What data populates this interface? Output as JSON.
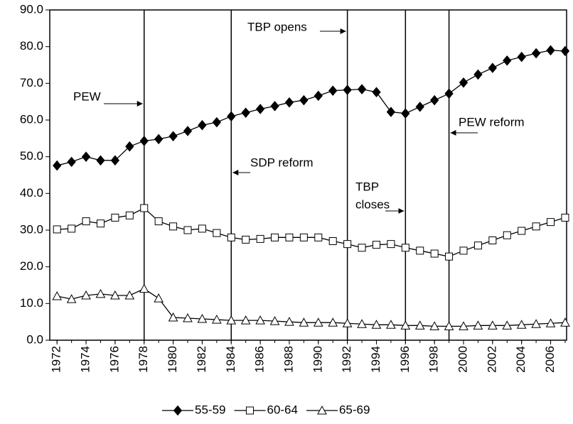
{
  "chart_data": {
    "type": "line",
    "x": [
      1972,
      1973,
      1974,
      1975,
      1976,
      1977,
      1978,
      1979,
      1980,
      1981,
      1982,
      1983,
      1984,
      1985,
      1986,
      1987,
      1988,
      1989,
      1990,
      1991,
      1992,
      1993,
      1994,
      1995,
      1996,
      1997,
      1998,
      1999,
      2000,
      2001,
      2002,
      2003,
      2004,
      2005,
      2006,
      2007
    ],
    "series": [
      {
        "name": "55-59",
        "color": "#000000",
        "marker": "diamond",
        "values": [
          47.6,
          48.6,
          50.0,
          49.0,
          49.0,
          52.8,
          54.3,
          54.8,
          55.6,
          57.0,
          58.6,
          59.4,
          61.0,
          62.0,
          63.0,
          63.8,
          64.8,
          65.4,
          66.6,
          68.0,
          68.2,
          68.4,
          67.6,
          62.2,
          61.8,
          63.6,
          65.4,
          67.2,
          70.2,
          72.4,
          74.2,
          76.2,
          77.2,
          78.2,
          79.0,
          78.8
        ]
      },
      {
        "name": "60-64",
        "color": "#000000",
        "marker": "square",
        "values": [
          30.2,
          30.4,
          32.4,
          31.8,
          33.4,
          34.0,
          36.0,
          32.4,
          31.0,
          30.0,
          30.4,
          29.2,
          28.0,
          27.4,
          27.6,
          28.0,
          28.0,
          28.0,
          28.0,
          27.0,
          26.2,
          25.2,
          26.0,
          26.2,
          25.2,
          24.4,
          23.6,
          22.8,
          24.4,
          25.8,
          27.2,
          28.6,
          29.8,
          31.0,
          32.2,
          33.4
        ]
      },
      {
        "name": "65-69",
        "color": "#000000",
        "marker": "triangle",
        "values": [
          12.0,
          11.2,
          12.2,
          12.6,
          12.2,
          12.2,
          14.0,
          11.4,
          6.2,
          6.0,
          5.8,
          5.6,
          5.4,
          5.4,
          5.4,
          5.2,
          5.0,
          4.8,
          4.8,
          4.8,
          4.6,
          4.4,
          4.2,
          4.2,
          4.0,
          4.0,
          3.8,
          3.8,
          3.8,
          4.0,
          4.0,
          4.0,
          4.2,
          4.4,
          4.6,
          4.8
        ]
      }
    ],
    "xlim": [
      1971.5,
      2007.1
    ],
    "xticks": [
      1972,
      1974,
      1976,
      1978,
      1980,
      1982,
      1984,
      1986,
      1988,
      1990,
      1992,
      1994,
      1996,
      1998,
      2000,
      2002,
      2004,
      2006
    ],
    "ylim": [
      0,
      90
    ],
    "yticks": [
      {
        "value": 0,
        "label": "0.0"
      },
      {
        "value": 10,
        "label": "10.0"
      },
      {
        "value": 20,
        "label": "20.0"
      },
      {
        "value": 30,
        "label": "30.0"
      },
      {
        "value": 40,
        "label": "40.0"
      },
      {
        "value": 50,
        "label": "50.0"
      },
      {
        "value": 60,
        "label": "60.0"
      },
      {
        "value": 70,
        "label": "70.0"
      },
      {
        "value": 80,
        "label": "80.0"
      },
      {
        "value": 90,
        "label": "90.0"
      }
    ],
    "events": [
      {
        "x": 1978,
        "lines": [
          "PEW"
        ]
      },
      {
        "x": 1984,
        "lines": [
          "SDP reform"
        ]
      },
      {
        "x": 1992,
        "lines": [
          "TBP opens"
        ]
      },
      {
        "x": 1996,
        "lines": [
          "TBP",
          "closes"
        ]
      },
      {
        "x": 1999,
        "lines": [
          "PEW reform"
        ]
      }
    ],
    "legend": "bottom"
  }
}
